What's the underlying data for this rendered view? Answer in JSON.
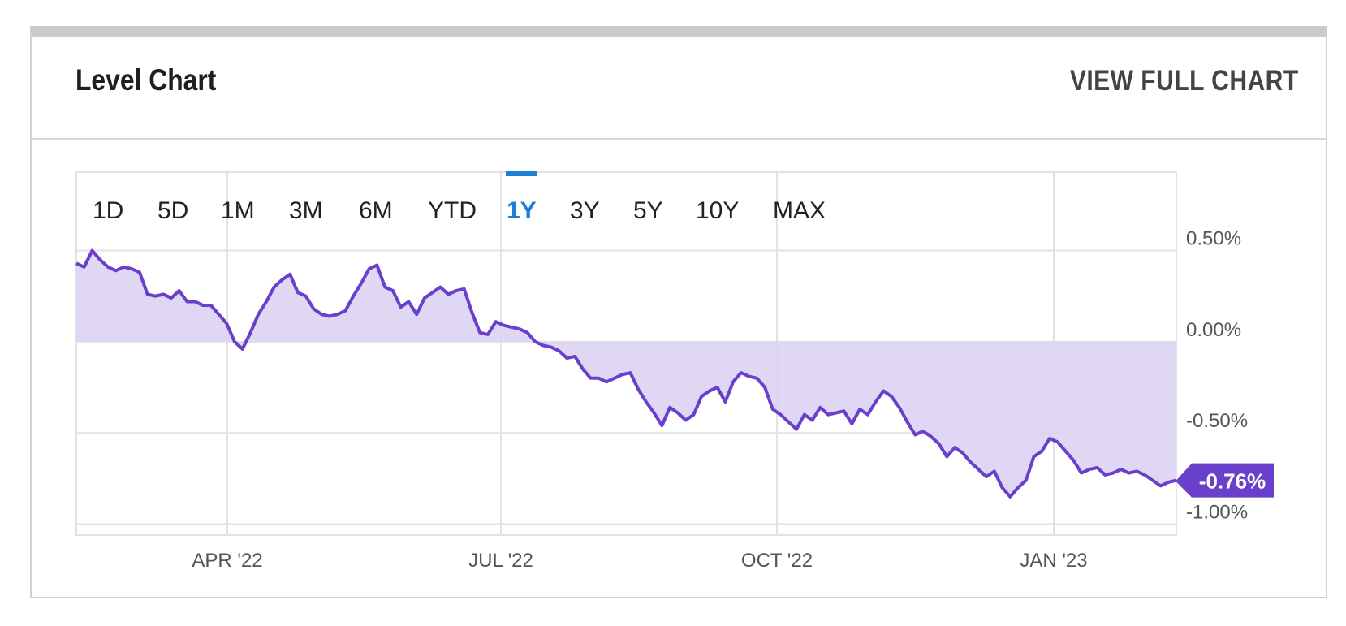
{
  "header": {
    "title": "Level Chart",
    "full_chart_link": "VIEW FULL CHART"
  },
  "range_buttons": [
    "1D",
    "5D",
    "1M",
    "3M",
    "6M",
    "YTD",
    "1Y",
    "3Y",
    "5Y",
    "10Y",
    "MAX"
  ],
  "active_range": "1Y",
  "colors": {
    "line": "#6a3fcb",
    "fill": "#dcd3f2",
    "active": "#1e7fd4",
    "grid": "#e2e2e2",
    "badge": "#6a3fcb"
  },
  "chart_data": {
    "type": "area",
    "x_ticks": [
      "APR '22",
      "JUL '22",
      "OCT '22",
      "JAN '23"
    ],
    "y_ticks": [
      "0.50%",
      "0.00%",
      "-0.50%",
      "-1.00%"
    ],
    "y_tick_values": [
      0.5,
      0.0,
      -0.5,
      -1.0
    ],
    "ylim": [
      -1.06,
      0.93
    ],
    "last_value_label": "-0.76%",
    "series": [
      {
        "values": [
          0.43,
          0.41,
          0.5,
          0.45,
          0.41,
          0.39,
          0.41,
          0.4,
          0.38,
          0.26,
          0.25,
          0.26,
          0.24,
          0.28,
          0.22,
          0.22,
          0.2,
          0.2,
          0.15,
          0.1,
          0.0,
          -0.04,
          0.05,
          0.15,
          0.22,
          0.3,
          0.34,
          0.37,
          0.27,
          0.25,
          0.18,
          0.15,
          0.14,
          0.15,
          0.17,
          0.25,
          0.32,
          0.4,
          0.42,
          0.3,
          0.28,
          0.19,
          0.22,
          0.15,
          0.24,
          0.27,
          0.3,
          0.26,
          0.28,
          0.29,
          0.16,
          0.05,
          0.04,
          0.11,
          0.09,
          0.08,
          0.07,
          0.05,
          0.0,
          -0.02,
          -0.03,
          -0.05,
          -0.09,
          -0.08,
          -0.15,
          -0.2,
          -0.2,
          -0.22,
          -0.2,
          -0.18,
          -0.17,
          -0.26,
          -0.33,
          -0.39,
          -0.46,
          -0.36,
          -0.39,
          -0.43,
          -0.4,
          -0.3,
          -0.27,
          -0.25,
          -0.33,
          -0.22,
          -0.17,
          -0.19,
          -0.2,
          -0.25,
          -0.37,
          -0.4,
          -0.44,
          -0.48,
          -0.4,
          -0.43,
          -0.36,
          -0.4,
          -0.39,
          -0.38,
          -0.45,
          -0.37,
          -0.4,
          -0.33,
          -0.27,
          -0.3,
          -0.36,
          -0.44,
          -0.51,
          -0.49,
          -0.52,
          -0.56,
          -0.63,
          -0.58,
          -0.61,
          -0.66,
          -0.7,
          -0.74,
          -0.71,
          -0.8,
          -0.85,
          -0.8,
          -0.76,
          -0.63,
          -0.6,
          -0.53,
          -0.55,
          -0.6,
          -0.65,
          -0.72,
          -0.7,
          -0.69,
          -0.73,
          -0.72,
          -0.7,
          -0.72,
          -0.71,
          -0.73,
          -0.76,
          -0.79,
          -0.77,
          -0.76
        ]
      }
    ]
  }
}
